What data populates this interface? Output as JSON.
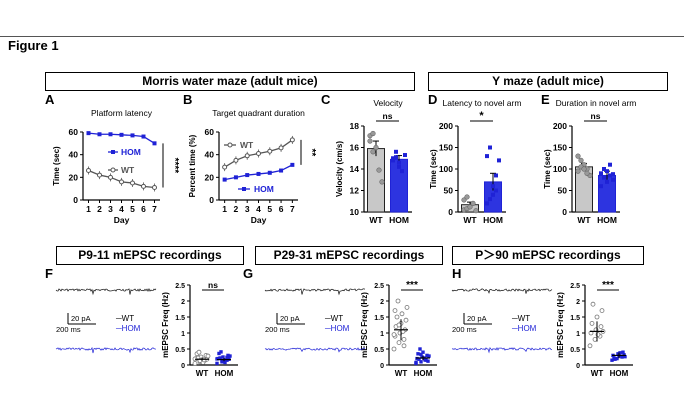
{
  "figure_label": "Figure 1",
  "sections": {
    "mwm": "Morris water maze (adult mice)",
    "ymaze": "Y maze (adult mice)",
    "p9": "P9-11 mEPSC recordings",
    "p29": "P29-31 mEPSC recordings",
    "p90": "P＞90 mEPSC recordings"
  },
  "panel_letters": [
    "A",
    "B",
    "C",
    "D",
    "E",
    "F",
    "G",
    "H"
  ],
  "colors": {
    "wt": "#555555",
    "hom": "#1f22d6",
    "wt_fill": "#c8c8c8",
    "hom_fill": "#2d34e0"
  },
  "chart_data": [
    {
      "id": "A",
      "type": "line",
      "title": "Platform latency",
      "xlabel": "Day",
      "ylabel": "Time (sec)",
      "x": [
        1,
        2,
        3,
        4,
        5,
        6,
        7
      ],
      "xlim": [
        0.5,
        7.5
      ],
      "ylim": [
        0,
        60
      ],
      "yticks": [
        0,
        20,
        40,
        60
      ],
      "series": [
        {
          "name": "HOM",
          "values": [
            59,
            58,
            58,
            57.5,
            57,
            56,
            50
          ]
        },
        {
          "name": "WT",
          "values": [
            26,
            22,
            20,
            16,
            15,
            12,
            11
          ]
        }
      ],
      "significance": "****",
      "legend": "center"
    },
    {
      "id": "B",
      "type": "line",
      "title": "Target quadrant duration",
      "xlabel": "Day",
      "ylabel": "Percent time (%)",
      "x": [
        1,
        2,
        3,
        4,
        5,
        6,
        7
      ],
      "xlim": [
        0.5,
        7.5
      ],
      "ylim": [
        0,
        60
      ],
      "yticks": [
        0,
        20,
        40,
        60
      ],
      "series": [
        {
          "name": "WT",
          "values": [
            29,
            35,
            39,
            41,
            43,
            46,
            53
          ]
        },
        {
          "name": "HOM",
          "values": [
            18,
            20,
            22,
            23,
            24,
            26,
            31
          ]
        }
      ],
      "significance": "**",
      "legend": "left"
    },
    {
      "id": "C",
      "type": "bar",
      "title": "Velocity",
      "ylabel": "Velocity (cm/s)",
      "categories": [
        "WT",
        "HOM"
      ],
      "values": [
        15.9,
        14.9
      ],
      "errors": [
        0.7,
        0.35
      ],
      "ylim": [
        10,
        18
      ],
      "yticks": [
        10,
        12,
        14,
        16,
        18
      ],
      "points": [
        [
          17.1,
          17.3,
          16.0,
          13.9,
          12.8,
          16.6,
          15.6
        ],
        [
          15.0,
          15.6,
          14.2,
          13.8,
          15.3,
          14.8,
          15.1,
          14.6
        ]
      ],
      "significance": "ns"
    },
    {
      "id": "D",
      "type": "bar",
      "title": "Latency to novel arm",
      "ylabel": "Time (sec)",
      "categories": [
        "WT",
        "HOM"
      ],
      "values": [
        17,
        70
      ],
      "errors": [
        6,
        20
      ],
      "ylim": [
        0,
        200
      ],
      "yticks": [
        0,
        50,
        100,
        150,
        200
      ],
      "points": [
        [
          5,
          8,
          12,
          20,
          3,
          28,
          35
        ],
        [
          20,
          30,
          60,
          85,
          120,
          130,
          150,
          40,
          50
        ]
      ],
      "significance": "*"
    },
    {
      "id": "E",
      "type": "bar",
      "title": "Duration in novel arm",
      "ylabel": "Time (sec)",
      "categories": [
        "WT",
        "HOM"
      ],
      "values": [
        105,
        85
      ],
      "errors": [
        8,
        10
      ],
      "ylim": [
        0,
        200
      ],
      "yticks": [
        0,
        50,
        100,
        150,
        200
      ],
      "points": [
        [
          95,
          120,
          110,
          100,
          85,
          130,
          105,
          100,
          90
        ],
        [
          60,
          80,
          95,
          110,
          75,
          90,
          100,
          70,
          85,
          88
        ]
      ],
      "significance": "ns"
    },
    {
      "id": "F",
      "type": "scatter",
      "ylabel": "mEPSC Freq (Hz)",
      "categories": [
        "WT",
        "HOM"
      ],
      "values": [
        0.18,
        0.17
      ],
      "ylim": [
        0,
        2.5
      ],
      "yticks": [
        0,
        0.5,
        1.0,
        1.5,
        2.0,
        2.5
      ],
      "points": [
        [
          0.05,
          0.1,
          0.15,
          0.2,
          0.25,
          0.3,
          0.35,
          0.12,
          0.18,
          0.22,
          0.08,
          0.28,
          0.4,
          0.16,
          0.19,
          0.14
        ],
        [
          0.05,
          0.1,
          0.15,
          0.2,
          0.25,
          0.3,
          0.36,
          0.12,
          0.18,
          0.22,
          0.08,
          0.28,
          0.41,
          0.16,
          0.19,
          0.14,
          0.24
        ]
      ],
      "significance": "ns"
    },
    {
      "id": "G",
      "type": "scatter",
      "ylabel": "mEPSC Freq (Hz)",
      "categories": [
        "WT",
        "HOM"
      ],
      "values": [
        1.1,
        0.22
      ],
      "ylim": [
        0,
        2.5
      ],
      "yticks": [
        0,
        0.5,
        1.0,
        1.5,
        2.0,
        2.5
      ],
      "points": [
        [
          0.5,
          0.7,
          0.8,
          0.9,
          1.0,
          1.1,
          1.2,
          1.3,
          1.4,
          1.5,
          1.6,
          1.8,
          2.0,
          1.05,
          0.95,
          1.25,
          0.6,
          1.7
        ],
        [
          0.05,
          0.1,
          0.15,
          0.2,
          0.25,
          0.3,
          0.35,
          0.4,
          0.12,
          0.18,
          0.22,
          0.28,
          0.5,
          0.16,
          0.08,
          0.33
        ]
      ],
      "significance": "***"
    },
    {
      "id": "H",
      "type": "scatter",
      "ylabel": "mEPSC Freq (Hz)",
      "categories": [
        "WT",
        "HOM"
      ],
      "values": [
        1.05,
        0.3
      ],
      "ylim": [
        0,
        2.5
      ],
      "yticks": [
        0,
        0.5,
        1.0,
        1.5,
        2.0,
        2.5
      ],
      "points": [
        [
          0.6,
          0.8,
          0.9,
          1.0,
          1.1,
          1.2,
          1.3,
          1.5,
          1.7,
          1.9,
          0.95,
          1.05
        ],
        [
          0.15,
          0.2,
          0.25,
          0.3,
          0.35,
          0.4,
          0.22,
          0.28,
          0.32,
          0.18,
          0.38,
          0.26
        ]
      ],
      "significance": "***"
    }
  ],
  "traces": {
    "scale_pa": "20 pA",
    "scale_ms": "200 ms",
    "legend_wt": "─WT",
    "legend_hom": "─HOM"
  }
}
